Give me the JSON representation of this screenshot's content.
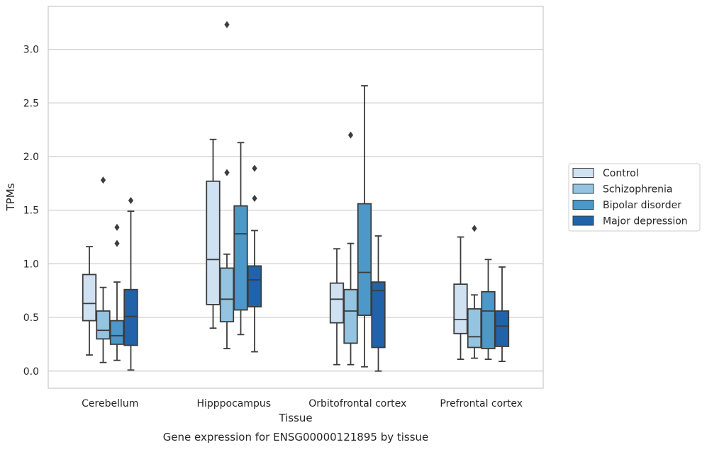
{
  "chart_data": {
    "type": "boxplot",
    "title": "",
    "caption": "Gene expression for ENSG00000121895 by tissue",
    "xlabel": "Tissue",
    "ylabel": "TPMs",
    "ylim": [
      -0.16,
      3.4
    ],
    "yticks": [
      "0.0",
      "0.5",
      "1.0",
      "1.5",
      "2.0",
      "2.5",
      "3.0"
    ],
    "ytick_values": [
      0.0,
      0.5,
      1.0,
      1.5,
      2.0,
      2.5,
      3.0
    ],
    "grid": "horizontal",
    "legend_position": "right",
    "categories": [
      "Cerebellum",
      "Hipppocampus",
      "Orbitofrontal cortex",
      "Prefrontal cortex"
    ],
    "series": [
      {
        "name": "Control",
        "color": "#d0e1f2",
        "boxes": [
          {
            "whisker_low": 0.15,
            "q1": 0.47,
            "median": 0.63,
            "q3": 0.9,
            "whisker_high": 1.16,
            "outliers": []
          },
          {
            "whisker_low": 0.4,
            "q1": 0.62,
            "median": 1.04,
            "q3": 1.77,
            "whisker_high": 2.16,
            "outliers": []
          },
          {
            "whisker_low": 0.06,
            "q1": 0.45,
            "median": 0.67,
            "q3": 0.82,
            "whisker_high": 1.14,
            "outliers": []
          },
          {
            "whisker_low": 0.11,
            "q1": 0.35,
            "median": 0.48,
            "q3": 0.81,
            "whisker_high": 1.25,
            "outliers": []
          }
        ]
      },
      {
        "name": "Schizophrenia",
        "color": "#94c4df",
        "boxes": [
          {
            "whisker_low": 0.08,
            "q1": 0.3,
            "median": 0.38,
            "q3": 0.56,
            "whisker_high": 0.78,
            "outliers": [
              1.78
            ]
          },
          {
            "whisker_low": 0.21,
            "q1": 0.46,
            "median": 0.67,
            "q3": 0.96,
            "whisker_high": 1.09,
            "outliers": [
              1.85,
              3.23
            ]
          },
          {
            "whisker_low": 0.06,
            "q1": 0.26,
            "median": 0.56,
            "q3": 0.76,
            "whisker_high": 1.19,
            "outliers": [
              2.2
            ]
          },
          {
            "whisker_low": 0.12,
            "q1": 0.22,
            "median": 0.32,
            "q3": 0.58,
            "whisker_high": 0.71,
            "outliers": [
              1.33
            ]
          }
        ]
      },
      {
        "name": "Bipolar disorder",
        "color": "#4b98c9",
        "boxes": [
          {
            "whisker_low": 0.1,
            "q1": 0.25,
            "median": 0.33,
            "q3": 0.47,
            "whisker_high": 0.83,
            "outliers": [
              1.19,
              1.34
            ]
          },
          {
            "whisker_low": 0.34,
            "q1": 0.57,
            "median": 1.28,
            "q3": 1.54,
            "whisker_high": 2.13,
            "outliers": []
          },
          {
            "whisker_low": 0.04,
            "q1": 0.52,
            "median": 0.92,
            "q3": 1.56,
            "whisker_high": 2.66,
            "outliers": []
          },
          {
            "whisker_low": 0.11,
            "q1": 0.21,
            "median": 0.56,
            "q3": 0.74,
            "whisker_high": 1.04,
            "outliers": []
          }
        ]
      },
      {
        "name": "Major depression",
        "color": "#2163aa",
        "boxes": [
          {
            "whisker_low": 0.01,
            "q1": 0.24,
            "median": 0.51,
            "q3": 0.76,
            "whisker_high": 1.49,
            "outliers": [
              1.59
            ]
          },
          {
            "whisker_low": 0.18,
            "q1": 0.6,
            "median": 0.85,
            "q3": 0.98,
            "whisker_high": 1.31,
            "outliers": [
              1.61,
              1.89
            ]
          },
          {
            "whisker_low": 0.0,
            "q1": 0.22,
            "median": 0.75,
            "q3": 0.83,
            "whisker_high": 1.26,
            "outliers": []
          },
          {
            "whisker_low": 0.09,
            "q1": 0.23,
            "median": 0.42,
            "q3": 0.56,
            "whisker_high": 0.97,
            "outliers": []
          }
        ]
      }
    ]
  }
}
